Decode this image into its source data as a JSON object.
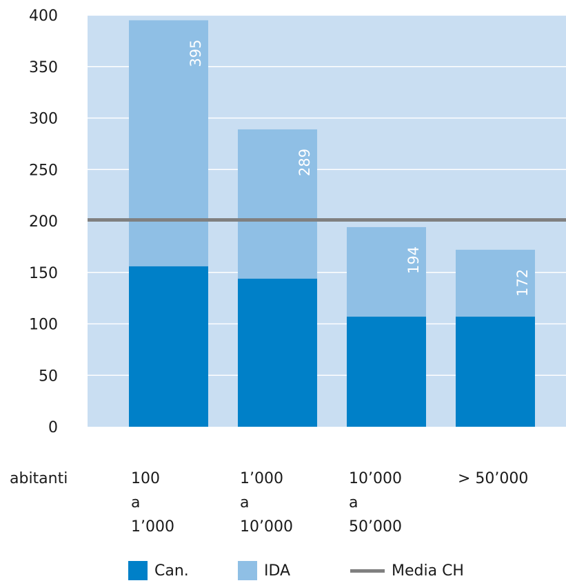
{
  "chart_data": {
    "type": "bar",
    "stacked": true,
    "ylim": [
      0,
      400
    ],
    "yticks": [
      "0",
      "50",
      "100",
      "150",
      "200",
      "250",
      "300",
      "350",
      "400"
    ],
    "xlabel": "abitanti",
    "categories": [
      [
        "100",
        "a",
        "1’000"
      ],
      [
        "1’000",
        "a",
        "10’000"
      ],
      [
        "10’000",
        "a",
        "50’000"
      ],
      [
        "> 50’000"
      ]
    ],
    "series": [
      {
        "name": "Can.",
        "color": "#0080c8",
        "values": [
          156,
          144,
          107,
          107
        ]
      },
      {
        "name": "IDA",
        "color": "#8fbfe5",
        "values": [
          239,
          145,
          87,
          65
        ]
      }
    ],
    "totals": [
      395,
      289,
      194,
      172
    ],
    "reference_line": {
      "name": "Media CH",
      "value": 201,
      "color": "#808080"
    },
    "plot_background": "#c9def2",
    "grid": true
  }
}
